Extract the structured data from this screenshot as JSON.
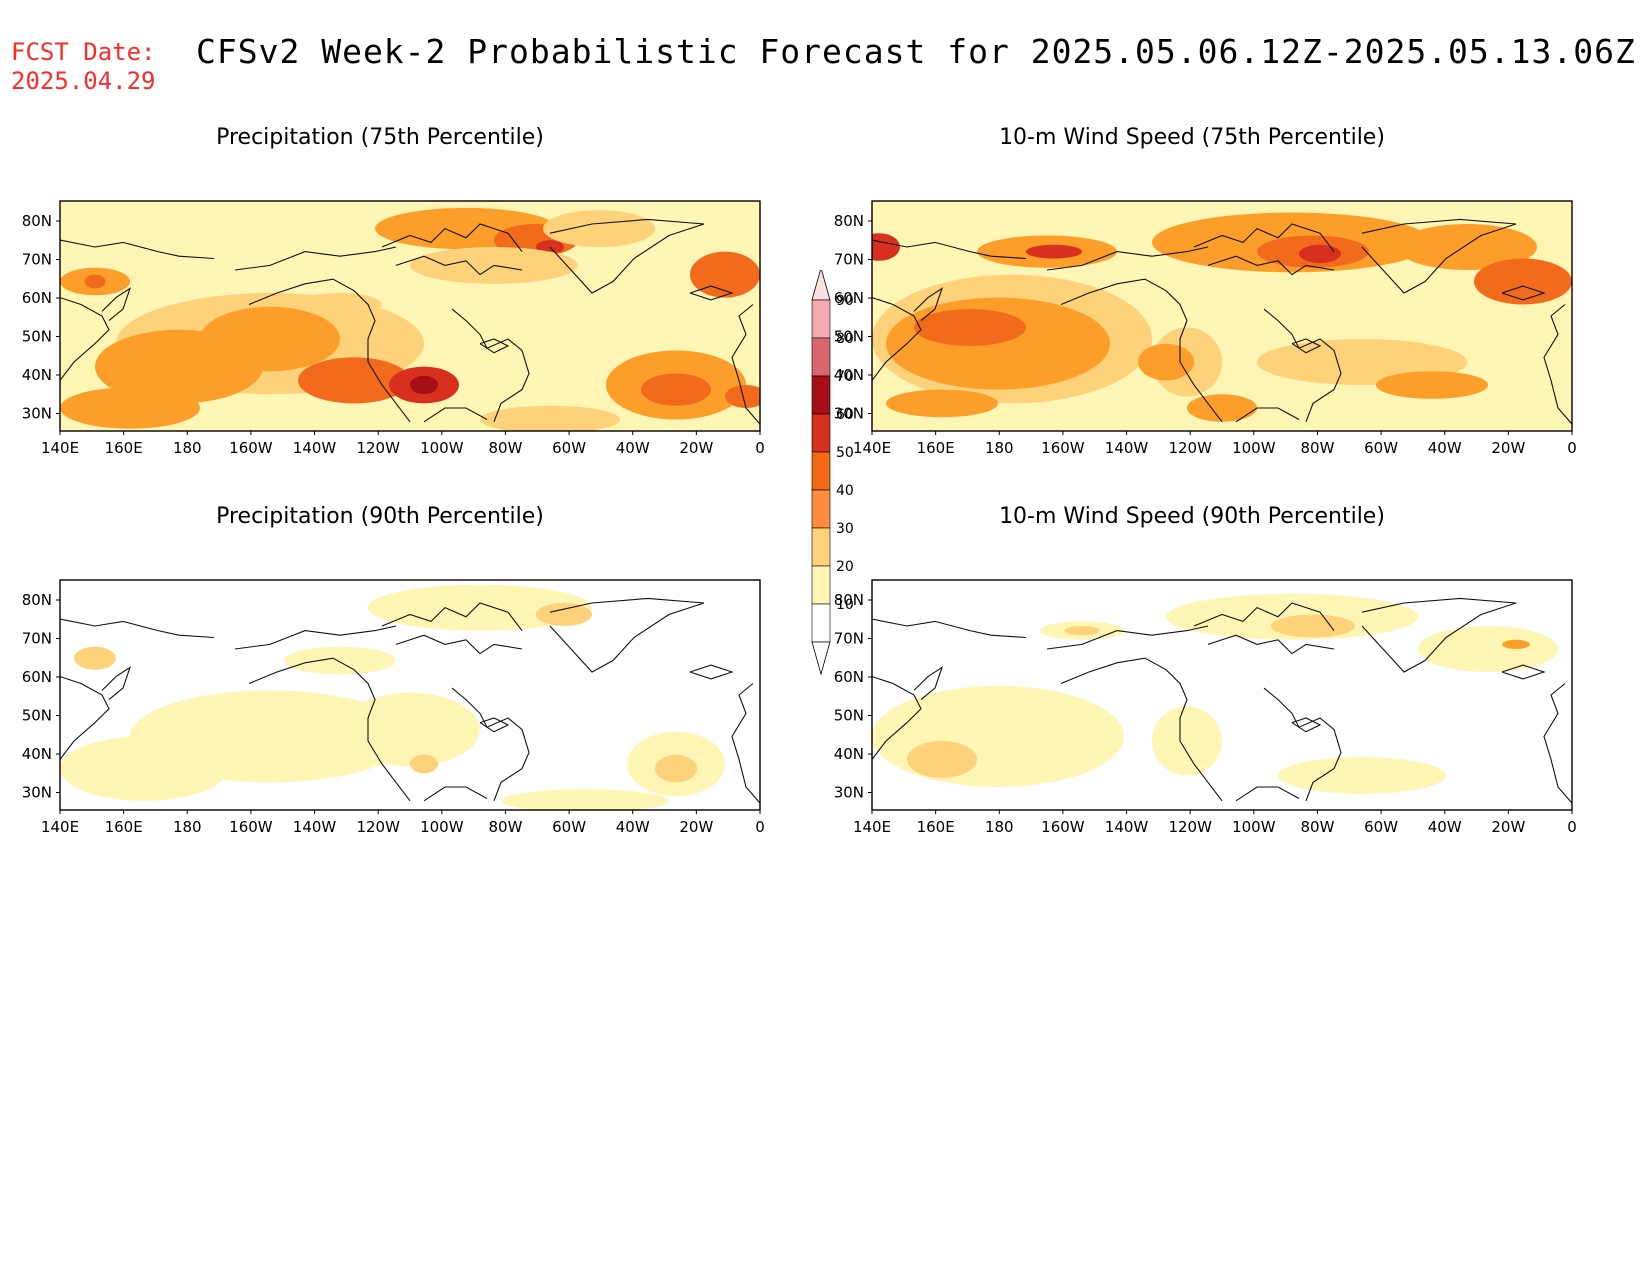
{
  "header": {
    "fcst_label": "FCST Date:",
    "fcst_date": "2025.04.29",
    "title": "CFSv2 Week-2 Probabilistic Forecast for 2025.05.06.12Z-2025.05.13.06Z"
  },
  "panels": [
    {
      "title": "Precipitation (75th Percentile)"
    },
    {
      "title": "10-m Wind Speed (75th Percentile)"
    },
    {
      "title": "Precipitation (90th Percentile)"
    },
    {
      "title": "10-m Wind Speed (90th Percentile)"
    }
  ],
  "axes": {
    "lon_labels": [
      "140E",
      "160E",
      "180",
      "160W",
      "140W",
      "120W",
      "100W",
      "80W",
      "60W",
      "40W",
      "20W",
      "0"
    ],
    "lat_labels": [
      "80N",
      "70N",
      "60N",
      "50N",
      "40N",
      "30N"
    ]
  },
  "colorbar": {
    "levels": [
      "90",
      "80",
      "70",
      "60",
      "50",
      "40",
      "30",
      "20",
      "10"
    ],
    "colors": [
      "#f4a9b0",
      "#d9666f",
      "#a50f15",
      "#d7301f",
      "#f16913",
      "#fd8d3c",
      "#fdd27a",
      "#fff5b5",
      "#ffffff"
    ]
  },
  "legend_colors": {
    "c10": "#fff5b5",
    "c20": "#fdd27a",
    "c30": "#fd9e2a",
    "c40": "#f26a1b",
    "c50": "#d7301f",
    "c60": "#a50f15"
  }
}
